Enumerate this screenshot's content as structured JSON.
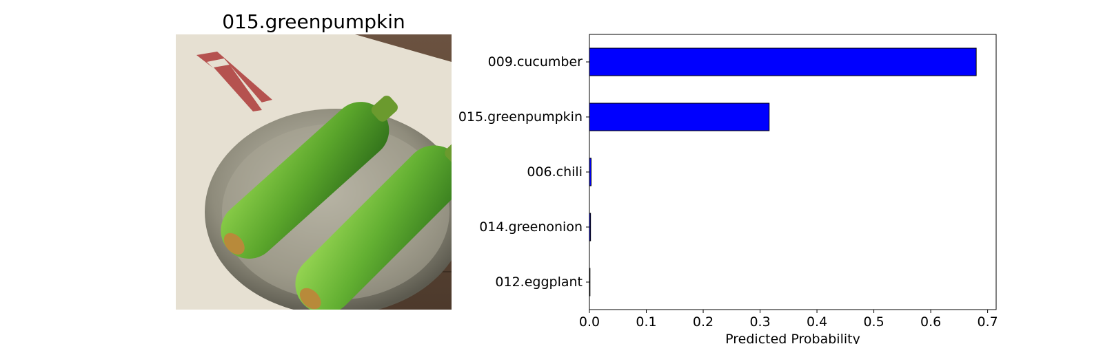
{
  "image_panel": {
    "title": "015.greenpumpkin"
  },
  "chart_data": {
    "type": "bar",
    "orientation": "horizontal",
    "categories": [
      "009.cucumber",
      "015.greenpumpkin",
      "006.chili",
      "014.greenonion",
      "012.eggplant"
    ],
    "values": [
      0.68,
      0.316,
      0.003,
      0.002,
      0.001
    ],
    "xlabel": "Predicted Probability",
    "ylabel": "",
    "title": "",
    "xlim": [
      0,
      0.715
    ],
    "xticks": [
      "0.0",
      "0.1",
      "0.2",
      "0.3",
      "0.4",
      "0.5",
      "0.6",
      "0.7"
    ],
    "grid": false,
    "bar_color": "#0000ff",
    "edge_color": "#000000"
  }
}
